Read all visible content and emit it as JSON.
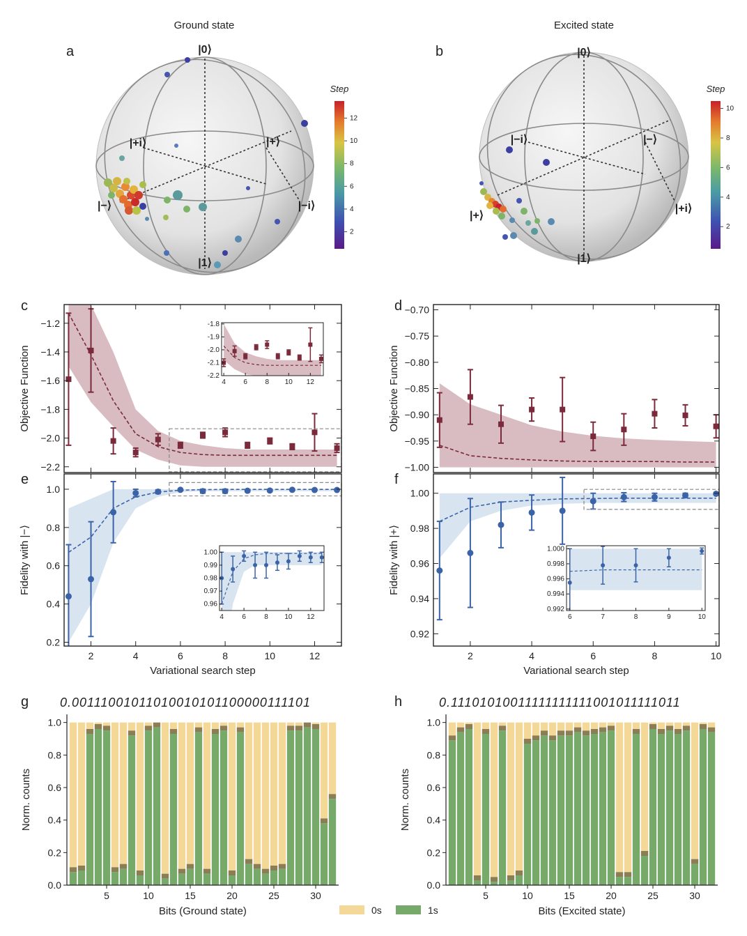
{
  "titles": {
    "ground": "Ground state",
    "excited": "Excited state"
  },
  "panel_labels": {
    "a": "a",
    "b": "b",
    "c": "c",
    "d": "d",
    "e": "e",
    "f": "f",
    "g": "g",
    "h": "h"
  },
  "colors": {
    "red": "#7a2a3a",
    "redBand": "#c9a0a8",
    "blue": "#3b64a8",
    "blueBand": "#c7d8ea",
    "green": "#77a96b",
    "yellow": "#f4d898",
    "dark": "#8b7d55"
  },
  "bloch": {
    "a": {
      "kets": {
        "zero": "|0⟩",
        "one": "|1⟩",
        "plus_i": "|+i⟩",
        "plus": "|+⟩",
        "minus": "|−⟩",
        "minus_i": "|−i⟩"
      },
      "colorbar": {
        "title": "Step",
        "ticks": [
          2,
          4,
          6,
          8,
          10,
          12
        ],
        "max": 13
      }
    },
    "b": {
      "kets": {
        "zero": "|0⟩",
        "one": "|1⟩",
        "minus_i": "|−i⟩",
        "minus": "|−⟩",
        "plus": "|+⟩",
        "plus_i": "|+i⟩"
      },
      "colorbar": {
        "title": "Step",
        "ticks": [
          2,
          4,
          6,
          8,
          10
        ],
        "max": 10
      }
    }
  },
  "chart_data": [
    {
      "id": "c",
      "type": "scatter",
      "ylabel": "Objective Function",
      "xlabel": "",
      "xlim": [
        0.8,
        13.2
      ],
      "ylim": [
        -2.24,
        -1.07
      ],
      "yticks": [
        -1.2,
        -1.4,
        -1.6,
        -1.8,
        -2.0,
        -2.2
      ],
      "xticks": [
        2,
        4,
        6,
        8,
        10,
        12
      ],
      "x": [
        1,
        2,
        3,
        4,
        5,
        6,
        7,
        8,
        9,
        10,
        11,
        12,
        13
      ],
      "values": [
        -1.59,
        -1.39,
        -2.02,
        -2.1,
        -2.01,
        -2.05,
        -1.98,
        -1.96,
        -2.05,
        -2.02,
        -2.06,
        -1.96,
        -2.07
      ],
      "err": [
        0.46,
        0.29,
        0.09,
        0.03,
        0.04,
        0.02,
        0.02,
        0.03,
        0.02,
        0.02,
        0.02,
        0.13,
        0.03
      ],
      "expected": [
        -1.13,
        -1.42,
        -1.74,
        -1.97,
        -2.06,
        -2.1,
        -2.115,
        -2.12,
        -2.12,
        -2.12,
        -2.12,
        -2.12,
        -2.12
      ],
      "band_low": [
        -1.5,
        -1.75,
        -1.92,
        -2.08,
        -2.15,
        -2.19,
        -2.2,
        -2.2,
        -2.2,
        -2.2,
        -2.2,
        -2.2,
        -2.2
      ],
      "band_high": [
        -1.07,
        -1.07,
        -1.4,
        -1.8,
        -1.95,
        -2.02,
        -2.05,
        -2.07,
        -2.08,
        -2.08,
        -2.08,
        -2.08,
        -2.08
      ],
      "inset": {
        "xlim": [
          3.8,
          13.2
        ],
        "ylim": [
          -2.2,
          -1.79
        ],
        "xticks": [
          4,
          6,
          8,
          10,
          12
        ],
        "yticks": [
          -1.8,
          -1.9,
          -2.0,
          -2.1,
          -2.2
        ],
        "ytick_labels": [
          "-1.8",
          "-1.9",
          "-2.0",
          "-2.1",
          "-2.2"
        ]
      }
    },
    {
      "id": "d",
      "type": "scatter",
      "ylabel": "Objective Function",
      "xlabel": "",
      "xlim": [
        0.8,
        10.1
      ],
      "ylim": [
        -1.01,
        -0.69
      ],
      "yticks": [
        -0.7,
        -0.75,
        -0.8,
        -0.85,
        -0.9,
        -0.95,
        -1.0
      ],
      "xticks": [
        2,
        4,
        6,
        8,
        10
      ],
      "x": [
        1,
        2,
        3,
        4,
        5,
        6,
        7,
        8,
        9,
        10
      ],
      "values": [
        -0.91,
        -0.866,
        -0.918,
        -0.89,
        -0.89,
        -0.941,
        -0.928,
        -0.898,
        -0.901,
        -0.922
      ],
      "err": [
        0.052,
        0.052,
        0.036,
        0.022,
        0.061,
        0.027,
        0.03,
        0.027,
        0.02,
        0.022
      ],
      "expected": [
        -0.958,
        -0.978,
        -0.983,
        -0.986,
        -0.988,
        -0.989,
        -0.989,
        -0.989,
        -0.99,
        -0.99
      ],
      "band_low": [
        -1.0,
        -1.0,
        -1.0,
        -1.0,
        -1.0,
        -1.0,
        -1.0,
        -1.0,
        -1.0,
        -1.0
      ],
      "band_high": [
        -0.84,
        -0.88,
        -0.9,
        -0.92,
        -0.932,
        -0.94,
        -0.945,
        -0.948,
        -0.95,
        -0.952
      ]
    },
    {
      "id": "e",
      "type": "scatter",
      "ylabel": "Fidelity with |−⟩",
      "xlabel": "Variational search step",
      "xlim": [
        0.8,
        13.2
      ],
      "ylim": [
        0.18,
        1.08
      ],
      "yticks": [
        0.2,
        0.4,
        0.6,
        0.8,
        1.0
      ],
      "xticks": [
        2,
        4,
        6,
        8,
        10,
        12
      ],
      "x": [
        1,
        2,
        3,
        4,
        5,
        6,
        7,
        8,
        9,
        10,
        11,
        12,
        13
      ],
      "values": [
        0.44,
        0.53,
        0.88,
        0.98,
        0.987,
        0.997,
        0.99,
        0.99,
        0.992,
        0.993,
        0.997,
        0.996,
        0.996
      ],
      "err": [
        0.27,
        0.3,
        0.16,
        0.02,
        0.01,
        0.004,
        0.01,
        0.01,
        0.006,
        0.006,
        0.004,
        0.004,
        0.004
      ],
      "expected": [
        0.67,
        0.75,
        0.9,
        0.96,
        0.985,
        0.995,
        0.998,
        0.999,
        0.999,
        0.999,
        0.999,
        0.999,
        0.999
      ],
      "band_low": [
        0.2,
        0.4,
        0.72,
        0.9,
        0.96,
        0.985,
        0.99,
        0.99,
        0.99,
        0.99,
        0.99,
        0.99,
        0.99
      ],
      "band_high": [
        0.9,
        0.95,
        1.0,
        1.0,
        1.0,
        1.0,
        1.0,
        1.0,
        1.0,
        1.0,
        1.0,
        1.0,
        1.0
      ],
      "inset": {
        "xlim": [
          3.8,
          13.2
        ],
        "ylim": [
          0.955,
          1.005
        ],
        "xticks": [
          4,
          6,
          8,
          10,
          12
        ],
        "yticks": [
          1.0,
          0.99,
          0.98,
          0.97,
          0.96
        ],
        "ytick_labels": [
          "1.00",
          "0.99",
          "0.98",
          "0.97",
          "0.96"
        ]
      }
    },
    {
      "id": "f",
      "type": "scatter",
      "ylabel": "Fidelity with |+⟩",
      "xlabel": "Variational search step",
      "xlim": [
        0.8,
        10.1
      ],
      "ylim": [
        0.913,
        1.011
      ],
      "yticks": [
        0.92,
        0.94,
        0.96,
        0.98,
        1.0
      ],
      "xticks": [
        2,
        4,
        6,
        8,
        10
      ],
      "x": [
        1,
        2,
        3,
        4,
        5,
        6,
        7,
        8,
        9,
        10
      ],
      "values": [
        0.956,
        0.966,
        0.982,
        0.989,
        0.99,
        0.9955,
        0.9978,
        0.9978,
        0.9988,
        0.9997
      ],
      "err": [
        0.028,
        0.031,
        0.013,
        0.01,
        0.019,
        0.0045,
        0.0025,
        0.0022,
        0.0012,
        0.0004
      ],
      "expected": [
        0.984,
        0.992,
        0.995,
        0.996,
        0.9968,
        0.997,
        0.9972,
        0.9972,
        0.9972,
        0.9972
      ],
      "band_low": [
        0.963,
        0.984,
        0.99,
        0.993,
        0.994,
        0.9945,
        0.9945,
        0.9945,
        0.9945,
        0.9945
      ],
      "band_high": [
        1.0,
        1.0,
        1.0,
        1.0,
        1.0,
        1.0,
        1.0,
        1.0,
        1.0,
        1.0
      ],
      "inset": {
        "xlim": [
          5.9,
          10.1
        ],
        "ylim": [
          0.9918,
          1.0004
        ],
        "xticks": [
          6,
          7,
          8,
          9,
          10
        ],
        "yticks": [
          1.0,
          0.998,
          0.996,
          0.994,
          0.992
        ],
        "ytick_labels": [
          "1.000",
          "0.998",
          "0.996",
          "0.994",
          "0.992"
        ]
      }
    },
    {
      "id": "g",
      "type": "bar",
      "ylabel": "Norm. counts",
      "xlabel": "Bits (Ground state)",
      "ylim": [
        0,
        1.05
      ],
      "yticks": [
        0.0,
        0.2,
        0.4,
        0.6,
        0.8,
        1.0
      ],
      "xticks": [
        5,
        10,
        15,
        20,
        25,
        30
      ],
      "sequence": "0.00111001011010010101100000111101",
      "ones": [
        0.08,
        0.09,
        0.93,
        0.96,
        0.95,
        0.08,
        0.1,
        0.92,
        0.06,
        0.95,
        0.97,
        0.04,
        0.93,
        0.07,
        0.1,
        0.94,
        0.07,
        0.93,
        0.95,
        0.06,
        0.94,
        0.13,
        0.1,
        0.07,
        0.09,
        0.1,
        0.95,
        0.95,
        0.97,
        0.96,
        0.38,
        0.53
      ]
    },
    {
      "id": "h",
      "type": "bar",
      "ylabel": "Norm. counts",
      "xlabel": "Bits (Excited state)",
      "ylim": [
        0,
        1.05
      ],
      "yticks": [
        0.0,
        0.2,
        0.4,
        0.6,
        0.8,
        1.0
      ],
      "xticks": [
        5,
        10,
        15,
        20,
        25,
        30
      ],
      "sequence": "0.11101010011111111111001011111011",
      "ones": [
        0.89,
        0.94,
        0.96,
        0.03,
        0.93,
        0.02,
        0.95,
        0.03,
        0.06,
        0.87,
        0.89,
        0.92,
        0.89,
        0.92,
        0.92,
        0.94,
        0.92,
        0.93,
        0.94,
        0.95,
        0.05,
        0.05,
        0.93,
        0.18,
        0.96,
        0.93,
        0.95,
        0.93,
        0.95,
        0.13,
        0.96,
        0.94
      ]
    }
  ],
  "legend": {
    "zeros": "0s",
    "ones": "1s"
  }
}
